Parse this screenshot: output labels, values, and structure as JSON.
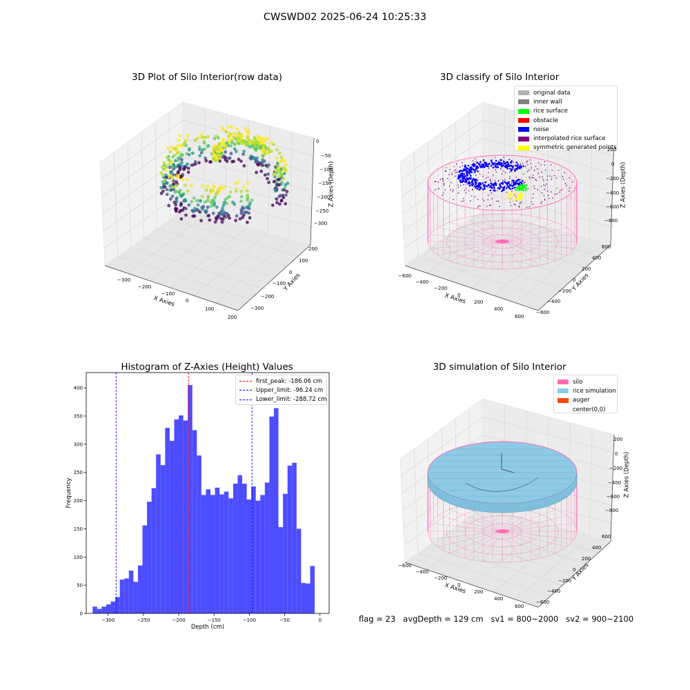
{
  "suptitle": "CWSWD02 2025-06-24 10:25:33",
  "footer": {
    "flag": "flag = 23",
    "avg_depth": "avgDepth = 129 cm",
    "sv1": "sv1 = 800~2000",
    "sv2": "sv2 = 900~2100"
  },
  "panels": {
    "raw": {
      "title": "3D Plot of Silo Interior(row data)",
      "xlabel": "X Axies",
      "ylabel": "Y Axies",
      "zlabel": "Z Axies (Depth)",
      "xticks": [
        "−300",
        "−200",
        "−100",
        "0",
        "100",
        "200"
      ],
      "yticks": [
        "200",
        "100",
        "0",
        "−100",
        "−200",
        "−300"
      ],
      "zticks": [
        "0",
        "−50",
        "−100",
        "−150",
        "−200",
        "−250",
        "−300"
      ]
    },
    "classify": {
      "title": "3D classify of Silo Interior",
      "xlabel": "X Axies",
      "ylabel": "Y Axies",
      "zlabel": "Z Axies (Depth)",
      "xticks": [
        "−600",
        "−400",
        "−200",
        "0",
        "200",
        "400",
        "600"
      ],
      "yticks": [
        "600",
        "400",
        "200",
        "0",
        "−200",
        "−400",
        "−600"
      ],
      "zticks": [
        "200",
        "0",
        "−200",
        "−400",
        "−600",
        "−800"
      ],
      "legend": [
        {
          "label": "original data",
          "color": "#b3b3b3"
        },
        {
          "label": "inner wall",
          "color": "#808080"
        },
        {
          "label": "rice surface",
          "color": "#00ff00"
        },
        {
          "label": "obstacle",
          "color": "#ff0000"
        },
        {
          "label": "noise",
          "color": "#0000ff"
        },
        {
          "label": "interpolated rice surface",
          "color": "#800080"
        },
        {
          "label": "symmetric generated points",
          "color": "#ffff00"
        }
      ]
    },
    "simulation": {
      "title": "3D simulation of Silo Interior",
      "xlabel": "X Axies",
      "ylabel": "Y Axies",
      "zlabel": "Z Axies (Depth)",
      "xticks": [
        "−600",
        "−400",
        "−200",
        "0",
        "200",
        "400",
        "600"
      ],
      "yticks": [
        "600",
        "400",
        "200",
        "0",
        "−200",
        "−400",
        "−600"
      ],
      "zticks": [
        "200",
        "0",
        "−200",
        "−400",
        "−600",
        "−800"
      ],
      "legend": [
        {
          "label": "silo",
          "color": "#ff69b4"
        },
        {
          "label": "rice simulation",
          "color": "#87ceeb"
        },
        {
          "label": "auger",
          "color": "#ff4500"
        },
        {
          "label": "center(0,0)",
          "color": "#ffffff"
        }
      ]
    }
  },
  "chart_data": [
    {
      "type": "bar",
      "title": "Histogram of Z-Axies (Height) Values",
      "xlabel": "Depth (cm)",
      "ylabel": "Frequency",
      "xlim": [
        -331,
        13
      ],
      "ylim": [
        0,
        427
      ],
      "xticks": [
        "−300",
        "−250",
        "−200",
        "−150",
        "−100",
        "−50",
        "0"
      ],
      "yticks": [
        "0",
        "50",
        "100",
        "150",
        "200",
        "250",
        "300",
        "350",
        "400"
      ],
      "bar_color": "#4d4dff",
      "bin_start": -322,
      "bin_width": 6.42,
      "values": [
        12,
        8,
        12,
        16,
        21,
        29,
        60,
        62,
        76,
        56,
        85,
        156,
        198,
        222,
        282,
        263,
        329,
        306,
        344,
        351,
        342,
        405,
        325,
        280,
        210,
        220,
        210,
        223,
        211,
        216,
        204,
        230,
        245,
        230,
        202,
        225,
        200,
        210,
        232,
        349,
        364,
        153,
        212,
        262,
        267,
        150,
        54,
        53,
        84
      ],
      "vlines": [
        {
          "label": "first_peak: -186.06 cm",
          "x": -186.06,
          "color": "#ff0000"
        },
        {
          "label": "Upper_limit: -96.24 cm",
          "x": -96.24,
          "color": "#0000ff"
        },
        {
          "label": "Lower_limit: -288.72 cm",
          "x": -288.72,
          "color": "#0000ff"
        }
      ],
      "legend_position": "upper right",
      "grid": false
    }
  ]
}
